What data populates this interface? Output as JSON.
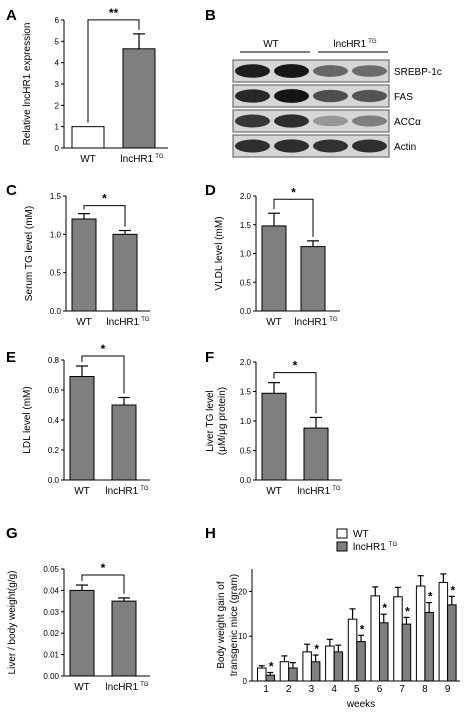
{
  "figure": {
    "panel_labels": [
      "A",
      "B",
      "C",
      "D",
      "E",
      "F",
      "G",
      "H"
    ]
  },
  "colors": {
    "bar": "#7f7f7f",
    "bar_light": "#ffffff",
    "axis": "#000000"
  },
  "chart_data": [
    {
      "id": "A",
      "type": "bar",
      "categories": [
        "WT",
        "lncHR1"
      ],
      "category_superscripts": [
        "",
        "TG"
      ],
      "values": [
        1.0,
        4.65
      ],
      "errors": [
        0,
        0.7
      ],
      "fills": [
        "white",
        "gray"
      ],
      "ylabel": "Relative lncHR1 expression",
      "ylim": [
        0,
        6
      ],
      "yticks": [
        0,
        1,
        2,
        3,
        4,
        5,
        6
      ],
      "significance": "**"
    },
    {
      "id": "B",
      "type": "table",
      "group_labels": [
        "WT",
        "lncHR1"
      ],
      "group_superscripts": [
        "",
        "TG"
      ],
      "rows": [
        "SREBP-1c",
        "FAS",
        "ACCα",
        "Actin"
      ],
      "intensity": [
        [
          0.92,
          0.95,
          0.62,
          0.6
        ],
        [
          0.88,
          0.96,
          0.72,
          0.7
        ],
        [
          0.82,
          0.86,
          0.42,
          0.52
        ],
        [
          0.85,
          0.86,
          0.84,
          0.85
        ]
      ]
    },
    {
      "id": "C",
      "type": "bar",
      "categories": [
        "WT",
        "lncHR1"
      ],
      "category_superscripts": [
        "",
        "TG"
      ],
      "values": [
        1.2,
        1.0
      ],
      "errors": [
        0.07,
        0.05
      ],
      "ylabel": "Serum TG level (mM)",
      "ylim": [
        0,
        1.5
      ],
      "yticks": [
        0.0,
        0.5,
        1.0,
        1.5
      ],
      "tick_decimals": 1,
      "significance": "*"
    },
    {
      "id": "D",
      "type": "bar",
      "categories": [
        "WT",
        "lncHR1"
      ],
      "category_superscripts": [
        "",
        "TG"
      ],
      "values": [
        1.48,
        1.12
      ],
      "errors": [
        0.22,
        0.1
      ],
      "ylabel": "VLDL level (mM)",
      "ylim": [
        0,
        2.0
      ],
      "yticks": [
        0.0,
        0.5,
        1.0,
        1.5,
        2.0
      ],
      "tick_decimals": 1,
      "significance": "*"
    },
    {
      "id": "E",
      "type": "bar",
      "categories": [
        "WT",
        "lncHR1"
      ],
      "category_superscripts": [
        "",
        "TG"
      ],
      "values": [
        0.69,
        0.5
      ],
      "errors": [
        0.07,
        0.05
      ],
      "ylabel": "LDL level (mM)",
      "ylim": [
        0,
        0.8
      ],
      "yticks": [
        0.0,
        0.2,
        0.4,
        0.6,
        0.8
      ],
      "tick_decimals": 1,
      "significance": "*"
    },
    {
      "id": "F",
      "type": "bar",
      "categories": [
        "WT",
        "lncHR1"
      ],
      "category_superscripts": [
        "",
        "TG"
      ],
      "values": [
        1.47,
        0.88
      ],
      "errors": [
        0.18,
        0.18
      ],
      "ylabel": "Liver TG level",
      "ylabel2": "(μM/μg protein)",
      "ylim": [
        0,
        2.0
      ],
      "yticks": [
        0.0,
        0.5,
        1.0,
        1.5,
        2.0
      ],
      "tick_decimals": 1,
      "significance": "*"
    },
    {
      "id": "G",
      "type": "bar",
      "categories": [
        "WT",
        "lncHR1"
      ],
      "category_superscripts": [
        "",
        "TG"
      ],
      "values": [
        0.04,
        0.035
      ],
      "errors": [
        0.0025,
        0.0015
      ],
      "ylabel": "Liver / body weight(g/g)",
      "ylim": [
        0,
        0.05
      ],
      "yticks": [
        0.0,
        0.01,
        0.02,
        0.03,
        0.04,
        0.05
      ],
      "tick_decimals": 2,
      "significance": "*"
    },
    {
      "id": "H",
      "type": "bar",
      "categories": [
        "1",
        "2",
        "3",
        "4",
        "5",
        "6",
        "7",
        "8",
        "9"
      ],
      "xlabel": "weeks",
      "ylabel": "Body weight gain of",
      "ylabel2": "transgenic mice (gram)",
      "ylim": [
        0,
        25
      ],
      "yticks": [
        0,
        10,
        20
      ],
      "legend_position": "top",
      "series": [
        {
          "name": "WT",
          "superscript": "",
          "values": [
            2.9,
            4.3,
            6.5,
            7.8,
            13.8,
            19.0,
            18.8,
            21.2,
            22.0
          ],
          "errors": [
            0.5,
            1.3,
            1.7,
            1.5,
            2.3,
            2.0,
            2.1,
            2.3,
            1.9
          ]
        },
        {
          "name": "lncHR1",
          "superscript": "TG",
          "values": [
            1.3,
            2.9,
            4.3,
            6.5,
            8.8,
            13.0,
            12.7,
            15.3,
            17.0
          ],
          "errors": [
            0.6,
            1.2,
            1.5,
            1.5,
            1.4,
            1.9,
            1.5,
            2.2,
            1.9
          ]
        }
      ],
      "significance": [
        "*",
        "",
        "*",
        "",
        "*",
        "*",
        "*",
        "*",
        "*"
      ]
    }
  ]
}
